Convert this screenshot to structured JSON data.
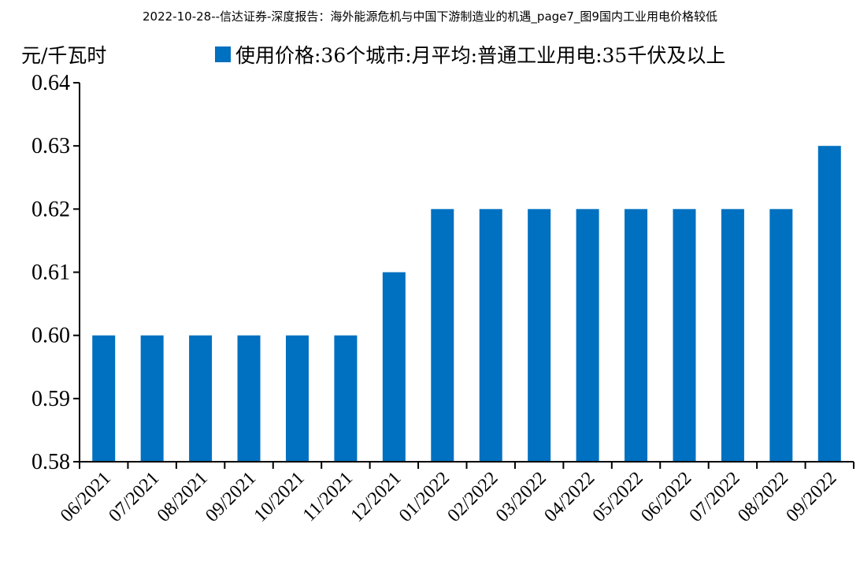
{
  "header": {
    "title": "2022-10-28--信达证券-深度报告：海外能源危机与中国下游制造业的机遇_page7_图9国内工业用电价格较低"
  },
  "chart_data": {
    "type": "bar",
    "y_unit_label": "元/千瓦时",
    "categories": [
      "06/2021",
      "07/2021",
      "08/2021",
      "09/2021",
      "10/2021",
      "11/2021",
      "12/2021",
      "01/2022",
      "02/2022",
      "03/2022",
      "04/2022",
      "05/2022",
      "06/2022",
      "07/2022",
      "08/2022",
      "09/2022"
    ],
    "series": [
      {
        "name": "使用价格:36个城市:月平均:普通工业用电:35千伏及以上",
        "color": "#0070C0",
        "values": [
          0.6,
          0.6,
          0.6,
          0.6,
          0.6,
          0.6,
          0.61,
          0.62,
          0.62,
          0.62,
          0.62,
          0.62,
          0.62,
          0.62,
          0.62,
          0.63
        ]
      }
    ],
    "ylim": [
      0.58,
      0.64
    ],
    "yticks": [
      "0.58",
      "0.59",
      "0.60",
      "0.61",
      "0.62",
      "0.63",
      "0.64"
    ],
    "grid": false,
    "legend_position": "top"
  }
}
